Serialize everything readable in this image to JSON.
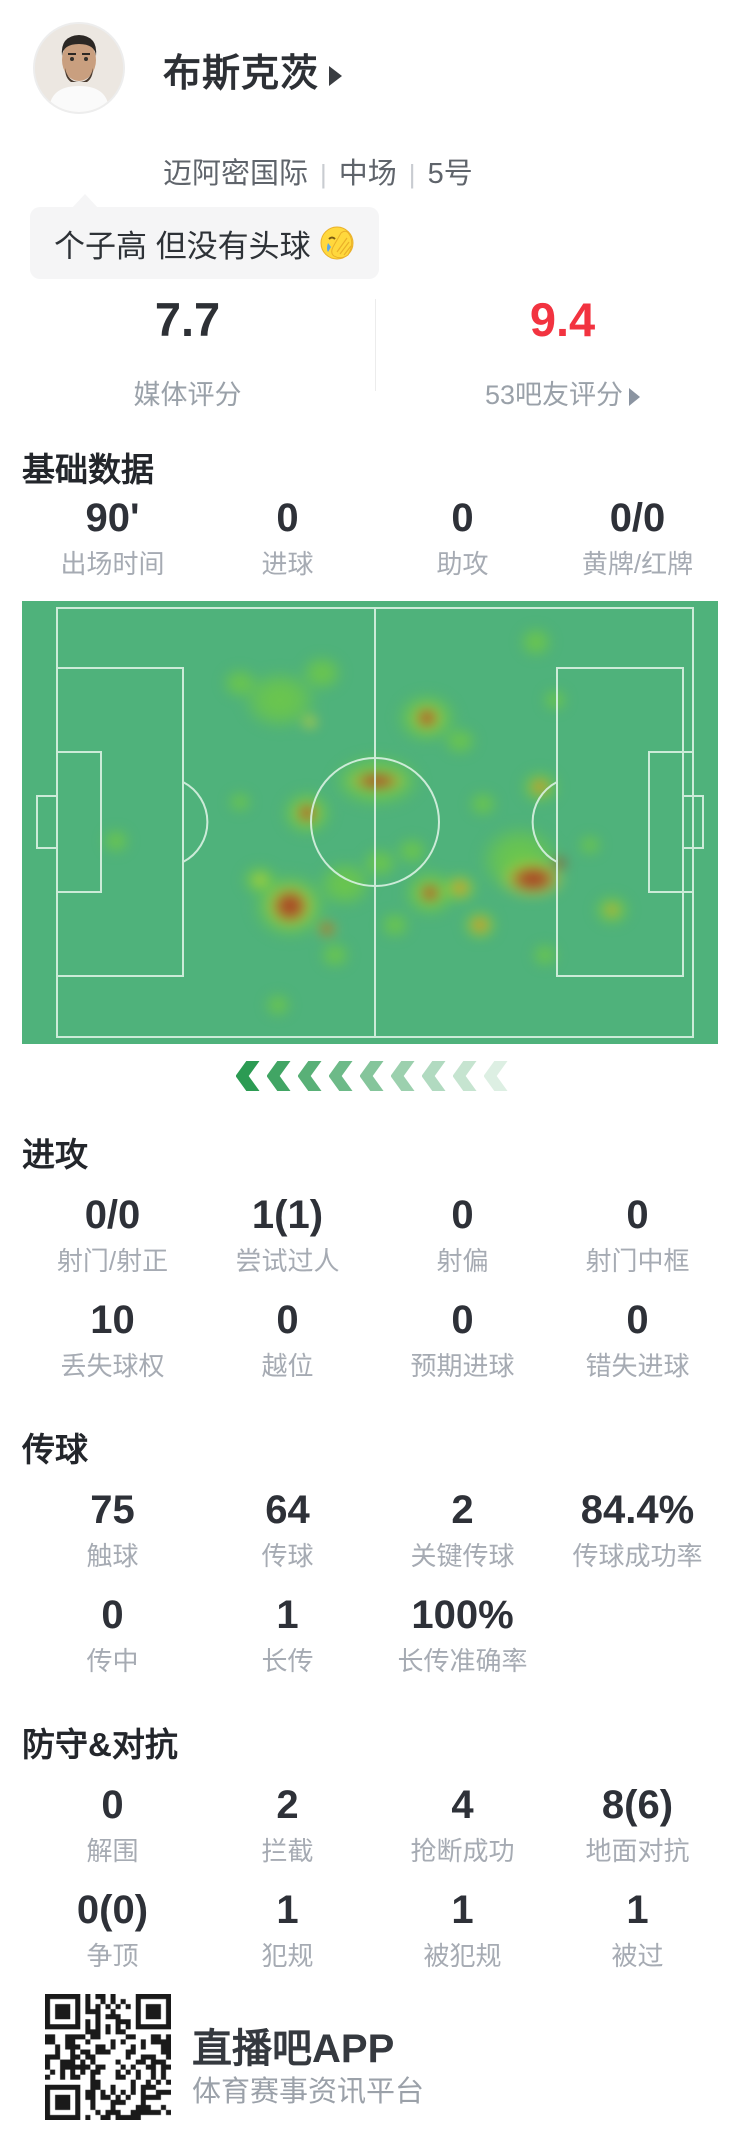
{
  "player": {
    "name": "布斯克茨",
    "team": "迈阿密国际",
    "position": "中场",
    "number": "5号",
    "tag_text": "个子高 但没有头球",
    "tag_emoji": "facepalm-emoji"
  },
  "ratings": {
    "media": {
      "value": "7.7",
      "label": "媒体评分"
    },
    "fans": {
      "value": "9.4",
      "label": "53吧友评分"
    }
  },
  "sections": {
    "basic": {
      "title": "基础数据",
      "rows": [
        [
          {
            "v": "90'",
            "l": "出场时间"
          },
          {
            "v": "0",
            "l": "进球"
          },
          {
            "v": "0",
            "l": "助攻"
          },
          {
            "v": "0/0",
            "l": "黄牌/红牌"
          }
        ]
      ]
    },
    "attack": {
      "title": "进攻",
      "rows": [
        [
          {
            "v": "0/0",
            "l": "射门/射正"
          },
          {
            "v": "1(1)",
            "l": "尝试过人"
          },
          {
            "v": "0",
            "l": "射偏"
          },
          {
            "v": "0",
            "l": "射门中框"
          }
        ],
        [
          {
            "v": "10",
            "l": "丢失球权"
          },
          {
            "v": "0",
            "l": "越位"
          },
          {
            "v": "0",
            "l": "预期进球"
          },
          {
            "v": "0",
            "l": "错失进球"
          }
        ]
      ]
    },
    "passing": {
      "title": "传球",
      "rows": [
        [
          {
            "v": "75",
            "l": "触球"
          },
          {
            "v": "64",
            "l": "传球"
          },
          {
            "v": "2",
            "l": "关键传球"
          },
          {
            "v": "84.4%",
            "l": "传球成功率"
          }
        ],
        [
          {
            "v": "0",
            "l": "传中"
          },
          {
            "v": "1",
            "l": "长传"
          },
          {
            "v": "100%",
            "l": "长传准确率"
          }
        ]
      ]
    },
    "defense": {
      "title": "防守&对抗",
      "rows": [
        [
          {
            "v": "0",
            "l": "解围"
          },
          {
            "v": "2",
            "l": "拦截"
          },
          {
            "v": "4",
            "l": "抢断成功"
          },
          {
            "v": "8(6)",
            "l": "地面对抗"
          }
        ],
        [
          {
            "v": "0(0)",
            "l": "争顶"
          },
          {
            "v": "1",
            "l": "犯规"
          },
          {
            "v": "1",
            "l": "被犯规"
          },
          {
            "v": "1",
            "l": "被过"
          }
        ]
      ]
    }
  },
  "heatmap": {
    "field_color": "#4fb27b",
    "line_color": "#daf2e3",
    "arrow_count": 9,
    "arrow_color": "#2c9b53",
    "blob_format": "[x,y,rx,ry] in pitch pixels (696x443)",
    "blobs": {
      "red": [
        [
          405,
          117,
          15,
          13
        ],
        [
          355,
          180,
          34,
          11
        ],
        [
          285,
          212,
          13,
          12
        ],
        [
          408,
          292,
          13,
          12
        ],
        [
          511,
          278,
          36,
          20
        ],
        [
          538,
          262,
          10,
          9
        ],
        [
          268,
          305,
          27,
          25
        ],
        [
          305,
          328,
          10,
          9
        ]
      ],
      "orange": [
        [
          518,
          186,
          13,
          11
        ],
        [
          438,
          287,
          12,
          10
        ],
        [
          458,
          324,
          13,
          11
        ],
        [
          590,
          309,
          8,
          7
        ]
      ],
      "yellow": [
        [
          288,
          121,
          13,
          11
        ],
        [
          405,
          117,
          25,
          22
        ],
        [
          355,
          180,
          48,
          17
        ],
        [
          285,
          212,
          22,
          19
        ],
        [
          238,
          279,
          12,
          10
        ],
        [
          408,
          292,
          21,
          18
        ],
        [
          511,
          278,
          52,
          31
        ],
        [
          518,
          186,
          16,
          14
        ],
        [
          268,
          305,
          40,
          36
        ],
        [
          305,
          328,
          16,
          13
        ],
        [
          590,
          309,
          13,
          11
        ],
        [
          438,
          287,
          19,
          16
        ],
        [
          458,
          324,
          19,
          16
        ]
      ],
      "green": [
        [
          514,
          41,
          24,
          22
        ],
        [
          533,
          99,
          18,
          16
        ],
        [
          258,
          99,
          56,
          44
        ],
        [
          300,
          72,
          30,
          26
        ],
        [
          218,
          82,
          26,
          22
        ],
        [
          405,
          117,
          46,
          38
        ],
        [
          438,
          140,
          24,
          20
        ],
        [
          355,
          180,
          66,
          40
        ],
        [
          285,
          212,
          38,
          34
        ],
        [
          218,
          201,
          17,
          15
        ],
        [
          94,
          240,
          20,
          18
        ],
        [
          238,
          279,
          27,
          23
        ],
        [
          323,
          283,
          40,
          34
        ],
        [
          358,
          262,
          26,
          22
        ],
        [
          408,
          292,
          40,
          36
        ],
        [
          498,
          259,
          60,
          52
        ],
        [
          461,
          203,
          21,
          18
        ],
        [
          518,
          186,
          29,
          25
        ],
        [
          568,
          244,
          17,
          15
        ],
        [
          268,
          305,
          57,
          50
        ],
        [
          313,
          354,
          22,
          19
        ],
        [
          256,
          404,
          19,
          17
        ],
        [
          523,
          354,
          19,
          17
        ],
        [
          590,
          309,
          27,
          23
        ],
        [
          373,
          324,
          22,
          19
        ],
        [
          390,
          250,
          23,
          20
        ],
        [
          438,
          287,
          26,
          23
        ],
        [
          458,
          324,
          26,
          23
        ]
      ]
    }
  },
  "footer": {
    "app_name": "直播吧APP",
    "app_desc": "体育赛事资讯平台"
  },
  "colors": {
    "accent_red": "#f23340",
    "value_text": "#2e3138",
    "label_text": "#a6abb3",
    "pitch_green": "#4fb27b"
  }
}
